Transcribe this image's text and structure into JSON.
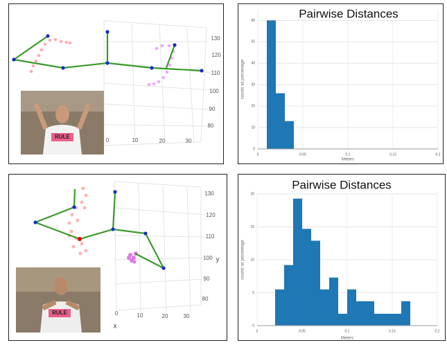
{
  "chart_data": [
    {
      "type": "histogram",
      "title": "Pairwise Distances",
      "x_label": "Meters",
      "y_label": "counts as percentage",
      "bins": [
        0.01,
        0.02,
        0.03,
        0.04
      ],
      "values": [
        60,
        26,
        13
      ],
      "color": "#1f77b4",
      "xlim": [
        0,
        0.2
      ],
      "xticks": [
        0,
        0.05,
        0.1,
        0.15,
        0.2
      ],
      "ylim": [
        0,
        65
      ],
      "yticks": [
        0,
        10,
        20,
        30,
        40,
        50,
        60
      ],
      "grid": true
    },
    {
      "type": "histogram",
      "title": "Pairwise Distances",
      "x_label": "Meters",
      "y_label": "counts as percentage",
      "bins": [
        0.02,
        0.03,
        0.04,
        0.05,
        0.06,
        0.07,
        0.08,
        0.09,
        0.1,
        0.11,
        0.12,
        0.13,
        0.14,
        0.15,
        0.16,
        0.17
      ],
      "values": [
        5.5,
        9.2,
        19.3,
        14.7,
        12.9,
        5.5,
        7.3,
        1.8,
        5.5,
        3.7,
        3.7,
        1.8,
        1.8,
        1.8,
        3.7
      ],
      "color": "#1f77b4",
      "xlim": [
        0,
        0.2
      ],
      "xticks": [
        0,
        0.05,
        0.1,
        0.15,
        0.2
      ],
      "ylim": [
        0,
        20
      ],
      "yticks": [
        0,
        5,
        10,
        15,
        20
      ],
      "grid": true
    }
  ],
  "panels_3d": [
    {
      "right_ticks": [
        "130",
        "120",
        "110",
        "100",
        "90",
        "80"
      ],
      "bottom_ticks": [
        "0",
        "10",
        "20",
        "30"
      ],
      "photo_text": "RULE"
    },
    {
      "right_ticks": [
        "130",
        "120",
        "110",
        "100",
        "90",
        "80"
      ],
      "bottom_ticks": [
        "0",
        "10",
        "20",
        "30"
      ],
      "y_axis": "y",
      "x_axis": "x",
      "photo_text": "RULE"
    }
  ]
}
